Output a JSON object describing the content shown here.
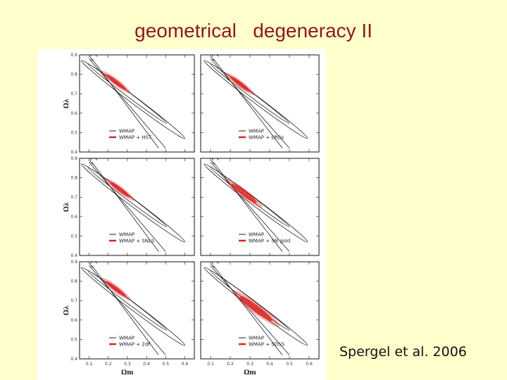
{
  "slide": {
    "title": "geometrical   degeneracy II",
    "citation": "Spergel et al. 2006"
  },
  "figure": {
    "y_axis_label": "Ωλ",
    "x_axis_label": "Ωm",
    "y_ticks": [
      "0.9",
      "0.8",
      "0.7",
      "0.6",
      "0.5",
      "0.4"
    ],
    "x_ticks": [
      "0.1",
      "0.2",
      "0.3",
      "0.4",
      "0.5",
      "0.6"
    ],
    "panels": [
      {
        "legend": [
          "WMAP",
          "WMAP + HST"
        ]
      },
      {
        "legend": [
          "WMAP",
          "WMAP + LRGs"
        ]
      },
      {
        "legend": [
          "WMAP",
          "WMAP + SNLS"
        ]
      },
      {
        "legend": [
          "WMAP",
          "WMAP + SN gold"
        ]
      },
      {
        "legend": [
          "WMAP",
          "WMAP + 2dF"
        ]
      },
      {
        "legend": [
          "WMAP",
          "WMAP + SDSS"
        ]
      }
    ]
  },
  "chart_data": {
    "type": "scatter",
    "title": "",
    "xlabel": "Ωm",
    "ylabel": "Ωλ",
    "xlim": [
      0.05,
      0.65
    ],
    "ylim": [
      0.4,
      0.9
    ],
    "wmap_degeneracy_line": [
      [
        0.1,
        0.88
      ],
      [
        0.5,
        0.42
      ]
    ],
    "constraints": [
      {
        "name": "WMAP + HST",
        "center": [
          0.24,
          0.76
        ]
      },
      {
        "name": "WMAP + LRGs",
        "center": [
          0.25,
          0.75
        ]
      },
      {
        "name": "WMAP + SNLS",
        "center": [
          0.26,
          0.74
        ]
      },
      {
        "name": "WMAP + SN gold",
        "center": [
          0.27,
          0.72
        ]
      },
      {
        "name": "WMAP + 2dF",
        "center": [
          0.24,
          0.76
        ]
      },
      {
        "name": "WMAP + SDSS",
        "center": [
          0.33,
          0.66
        ]
      }
    ],
    "colors": {
      "wmap": "#222222",
      "joint": "#e02020"
    }
  }
}
